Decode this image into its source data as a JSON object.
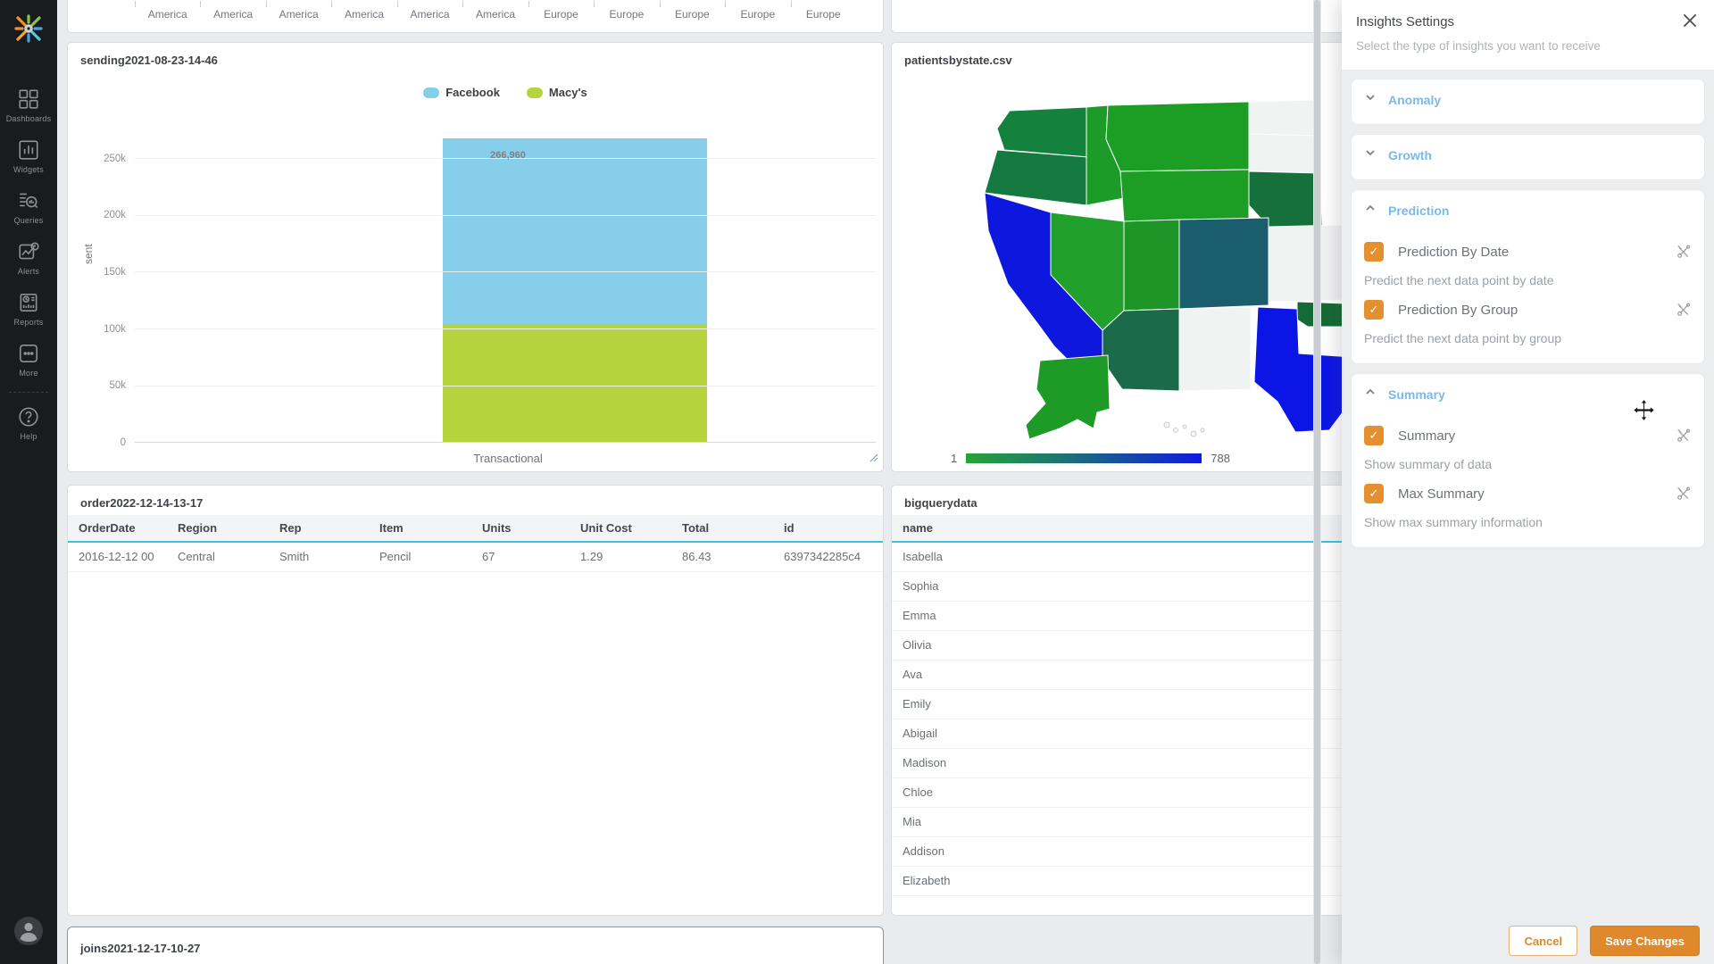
{
  "app": {
    "background": "#e9ebee",
    "sidebar_background": "#1a1b1e"
  },
  "sidebar": {
    "items": [
      {
        "label": "Dashboards",
        "icon": "dashboards-icon"
      },
      {
        "label": "Widgets",
        "icon": "widgets-icon"
      },
      {
        "label": "Queries",
        "icon": "queries-icon"
      },
      {
        "label": "Alerts",
        "icon": "alerts-icon"
      },
      {
        "label": "Reports",
        "icon": "reports-icon"
      },
      {
        "label": "More",
        "icon": "more-icon"
      }
    ],
    "help_label": "Help"
  },
  "top_chart": {
    "x_labels": [
      "America",
      "America",
      "America",
      "America",
      "America",
      "America",
      "Europe",
      "Europe",
      "Europe",
      "Europe",
      "Europe"
    ]
  },
  "sending": {
    "title": "sending2021-08-23-14-46",
    "legend": [
      {
        "label": "Facebook",
        "color": "#87ceeb"
      },
      {
        "label": "Macy's",
        "color": "#b5d33c"
      }
    ],
    "chart_data": {
      "type": "bar",
      "stacked": true,
      "categories": [
        "Transactional"
      ],
      "series": [
        {
          "name": "Macy's",
          "values": [
            103960
          ],
          "color": "#b5d33c"
        },
        {
          "name": "Facebook",
          "values": [
            163000
          ],
          "color": "#87ceeb"
        }
      ],
      "total_label": "266,960",
      "ylabel": "sent",
      "yticks": [
        {
          "value": 0,
          "label": "0"
        },
        {
          "value": 50000,
          "label": "50k"
        },
        {
          "value": 100000,
          "label": "100k"
        },
        {
          "value": 150000,
          "label": "150k"
        },
        {
          "value": 200000,
          "label": "200k"
        },
        {
          "value": 250000,
          "label": "250k"
        }
      ],
      "ymax": 266960,
      "legend_position": "top",
      "grid": true
    }
  },
  "map": {
    "title": "patientsbystate.csv",
    "scale_min": "1",
    "scale_max": "788",
    "colors": {
      "low": "#27a437",
      "mid": "#1b6e7a",
      "high": "#0f1be0",
      "empty": "#f1f2f2"
    }
  },
  "order": {
    "title": "order2022-12-14-13-17",
    "columns": [
      "OrderDate",
      "Region",
      "Rep",
      "Item",
      "Units",
      "Unit Cost",
      "Total",
      "id"
    ],
    "rows": [
      [
        "2016-12-12 00",
        "Central",
        "Smith",
        "Pencil",
        "67",
        "1.29",
        "86.43",
        "6397342285c4"
      ]
    ]
  },
  "bigquery": {
    "title": "bigquerydata",
    "columns": [
      "name"
    ],
    "rows": [
      "Isabella",
      "Sophia",
      "Emma",
      "Olivia",
      "Ava",
      "Emily",
      "Abigail",
      "Madison",
      "Chloe",
      "Mia",
      "Addison",
      "Elizabeth"
    ]
  },
  "joins": {
    "title": "joins2021-12-17-10-27"
  },
  "insights_panel": {
    "title": "Insights Settings",
    "subtitle": "Select the type of insights you want to receive",
    "sections": [
      {
        "label": "Anomaly",
        "expanded": false,
        "items": []
      },
      {
        "label": "Growth",
        "expanded": false,
        "items": []
      },
      {
        "label": "Prediction",
        "expanded": true,
        "items": [
          {
            "label": "Prediction By Date",
            "checked": true,
            "description": "Predict the next data point by date"
          },
          {
            "label": "Prediction By Group",
            "checked": true,
            "description": "Predict the next data point by group"
          }
        ]
      },
      {
        "label": "Summary",
        "expanded": true,
        "items": [
          {
            "label": "Summary",
            "checked": true,
            "description": "Show summary of data"
          },
          {
            "label": "Max Summary",
            "checked": true,
            "description": "Show max summary information"
          }
        ]
      }
    ],
    "buttons": {
      "cancel": "Cancel",
      "save": "Save Changes"
    },
    "colors": {
      "accent": "#e5902e",
      "section_header": "#7cb8e8"
    }
  }
}
